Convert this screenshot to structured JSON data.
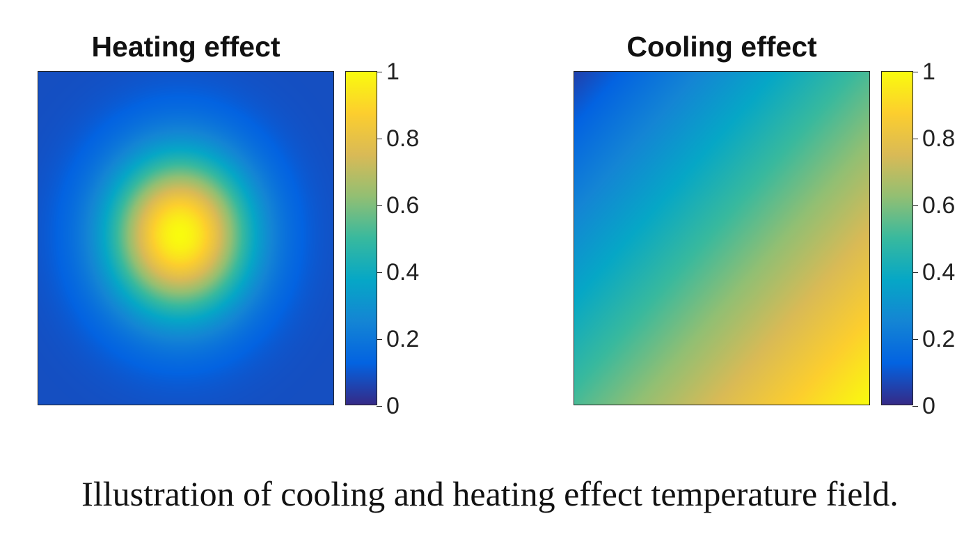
{
  "chart_data": [
    {
      "type": "heatmap",
      "title": "Heating effect",
      "field": "radial-gaussian",
      "peak_center": [
        0.48,
        0.49
      ],
      "value_range": [
        0,
        1
      ],
      "colorbar": {
        "ticks": [
          0,
          0.2,
          0.4,
          0.6,
          0.8,
          1
        ],
        "tick_labels": [
          "0",
          "0.2",
          "0.4",
          "0.6",
          "0.8",
          "1"
        ]
      },
      "colormap": "parula",
      "grid": false
    },
    {
      "type": "heatmap",
      "title": "Cooling effect",
      "field": "diagonal-gradient",
      "min_corner": "top-left",
      "max_corner": "bottom-right",
      "value_range": [
        0,
        1
      ],
      "colorbar": {
        "ticks": [
          0,
          0.2,
          0.4,
          0.6,
          0.8,
          1
        ],
        "tick_labels": [
          "0",
          "0.2",
          "0.4",
          "0.6",
          "0.8",
          "1"
        ]
      },
      "colormap": "parula",
      "grid": false
    }
  ],
  "colormap_stops": [
    "#352a87",
    "#0363e1",
    "#1485d4",
    "#06a7c6",
    "#38b99e",
    "#92bf73",
    "#d9ba56",
    "#fcce2e",
    "#f9fb0e"
  ],
  "caption": "Illustration of cooling and heating effect temperature field."
}
